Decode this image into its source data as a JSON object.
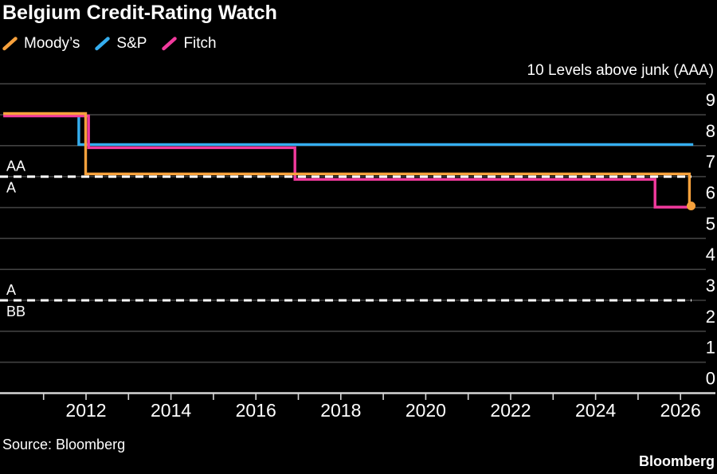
{
  "title": "Belgium Credit-Rating Watch",
  "axis_title": "10 Levels above junk (AAA)",
  "source": "Source: Bloomberg",
  "brand": "Bloomberg",
  "colors": {
    "background": "#000000",
    "grid": "#414141",
    "axis": "#D6D6D6",
    "text": "#FFFFFF",
    "threshold": "#FFFFFF",
    "moodys": "#F7A13C",
    "sp": "#35AEEF",
    "fitch": "#F23A9D"
  },
  "legend": [
    {
      "label": "Moody’s",
      "color": "#F7A13C"
    },
    {
      "label": "S&P",
      "color": "#35AEEF"
    },
    {
      "label": "Fitch",
      "color": "#F23A9D"
    }
  ],
  "chart_data": {
    "type": "line",
    "title": "Belgium Credit-Rating Watch",
    "ylabel": "10 Levels above junk (AAA)",
    "ylim": [
      0,
      10
    ],
    "xlim": [
      2010.05,
      2026.35
    ],
    "grid": "horizontal",
    "y_gridlines": [
      0,
      1,
      2,
      3,
      4,
      5,
      6,
      7,
      8,
      9,
      10
    ],
    "y_tick_labels": [
      0,
      1,
      2,
      3,
      4,
      5,
      6,
      7,
      8,
      9
    ],
    "x_ticks": [
      2011,
      2012,
      2013,
      2014,
      2015,
      2016,
      2017,
      2018,
      2019,
      2020,
      2021,
      2022,
      2023,
      2024,
      2025,
      2026
    ],
    "x_tick_labels": [
      2012,
      2014,
      2016,
      2018,
      2020,
      2022,
      2024,
      2026
    ],
    "series": [
      {
        "name": "Moody’s",
        "key": "moodys",
        "color": "#F7A13C",
        "end_marker": true,
        "points": [
          [
            2010.05,
            9
          ],
          [
            2011.99,
            9
          ],
          [
            2011.99,
            7
          ],
          [
            2026.21,
            7
          ],
          [
            2026.21,
            6
          ],
          [
            2026.25,
            6
          ]
        ]
      },
      {
        "name": "S&P",
        "key": "sp",
        "color": "#35AEEF",
        "end_marker": false,
        "points": [
          [
            2010.05,
            9
          ],
          [
            2011.83,
            9
          ],
          [
            2011.83,
            8
          ],
          [
            2026.3,
            8
          ]
        ]
      },
      {
        "name": "Fitch",
        "key": "fitch",
        "color": "#F23A9D",
        "end_marker": false,
        "points": [
          [
            2010.05,
            9
          ],
          [
            2012.06,
            9
          ],
          [
            2012.06,
            8
          ],
          [
            2016.92,
            8
          ],
          [
            2016.92,
            7
          ],
          [
            2025.4,
            7
          ],
          [
            2025.4,
            6
          ],
          [
            2026.25,
            6
          ]
        ]
      }
    ],
    "annotations": [
      {
        "level": 7,
        "label_above": "AA",
        "label_below": "A"
      },
      {
        "level": 3,
        "label_above": "A",
        "label_below": "BB"
      }
    ]
  }
}
